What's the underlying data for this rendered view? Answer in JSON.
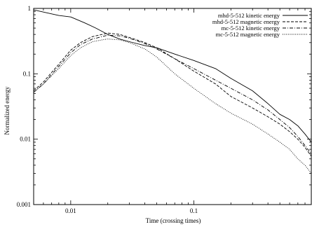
{
  "chart_data": {
    "type": "line",
    "title": "",
    "xlabel": "Time (crossing times)",
    "ylabel": "Normalized energy",
    "xscale": "log",
    "yscale": "log",
    "xlim": [
      0.005,
      0.9
    ],
    "ylim": [
      0.001,
      1
    ],
    "x_ticks": [
      {
        "value": 0.01,
        "label": "0.01"
      },
      {
        "value": 0.1,
        "label": "0.1"
      }
    ],
    "y_ticks": [
      {
        "value": 0.001,
        "label": "0.001"
      },
      {
        "value": 0.01,
        "label": "0.01"
      },
      {
        "value": 0.1,
        "label": "0.1"
      },
      {
        "value": 1,
        "label": "1"
      }
    ],
    "grid": false,
    "legend_position": "top-right",
    "series": [
      {
        "name": "mhd-5-512 kinetic energy",
        "style": "solid",
        "color": "#000000",
        "x": [
          0.005,
          0.0065,
          0.008,
          0.01,
          0.013,
          0.016,
          0.02,
          0.025,
          0.03,
          0.04,
          0.05,
          0.07,
          0.1,
          0.15,
          0.2,
          0.3,
          0.4,
          0.5,
          0.6,
          0.7,
          0.8,
          0.9
        ],
        "y": [
          0.95,
          0.85,
          0.78,
          0.74,
          0.6,
          0.5,
          0.4,
          0.34,
          0.31,
          0.27,
          0.25,
          0.2,
          0.16,
          0.12,
          0.085,
          0.055,
          0.035,
          0.024,
          0.02,
          0.016,
          0.012,
          0.009
        ]
      },
      {
        "name": "mhd-5-512 magnetic energy",
        "style": "dashed",
        "color": "#000000",
        "x": [
          0.005,
          0.006,
          0.008,
          0.01,
          0.012,
          0.015,
          0.018,
          0.02,
          0.025,
          0.03,
          0.04,
          0.05,
          0.07,
          0.1,
          0.15,
          0.2,
          0.3,
          0.4,
          0.5,
          0.6,
          0.7,
          0.8,
          0.9
        ],
        "y": [
          0.055,
          0.075,
          0.14,
          0.23,
          0.3,
          0.37,
          0.4,
          0.42,
          0.4,
          0.36,
          0.3,
          0.25,
          0.17,
          0.11,
          0.07,
          0.045,
          0.03,
          0.022,
          0.017,
          0.013,
          0.01,
          0.0075,
          0.0055
        ]
      },
      {
        "name": "mc-5-512 kinetic energy",
        "style": "dash-dot",
        "color": "#000000",
        "x": [
          0.005,
          0.006,
          0.008,
          0.01,
          0.012,
          0.015,
          0.018,
          0.02,
          0.025,
          0.03,
          0.04,
          0.05,
          0.07,
          0.1,
          0.15,
          0.2,
          0.3,
          0.4,
          0.5,
          0.6,
          0.7,
          0.8,
          0.9
        ],
        "y": [
          0.052,
          0.07,
          0.13,
          0.21,
          0.28,
          0.34,
          0.37,
          0.39,
          0.38,
          0.35,
          0.29,
          0.24,
          0.17,
          0.12,
          0.08,
          0.06,
          0.04,
          0.028,
          0.02,
          0.015,
          0.011,
          0.008,
          0.006
        ]
      },
      {
        "name": "mc-5-512 magnetic energy",
        "style": "dotted",
        "color": "#000000",
        "x": [
          0.005,
          0.006,
          0.008,
          0.01,
          0.012,
          0.015,
          0.018,
          0.02,
          0.025,
          0.03,
          0.04,
          0.05,
          0.07,
          0.1,
          0.15,
          0.2,
          0.3,
          0.4,
          0.5,
          0.6,
          0.7,
          0.8,
          0.9
        ],
        "y": [
          0.052,
          0.07,
          0.12,
          0.19,
          0.25,
          0.31,
          0.33,
          0.34,
          0.33,
          0.3,
          0.24,
          0.18,
          0.1,
          0.06,
          0.035,
          0.025,
          0.017,
          0.012,
          0.009,
          0.007,
          0.005,
          0.004,
          0.003
        ]
      }
    ]
  }
}
